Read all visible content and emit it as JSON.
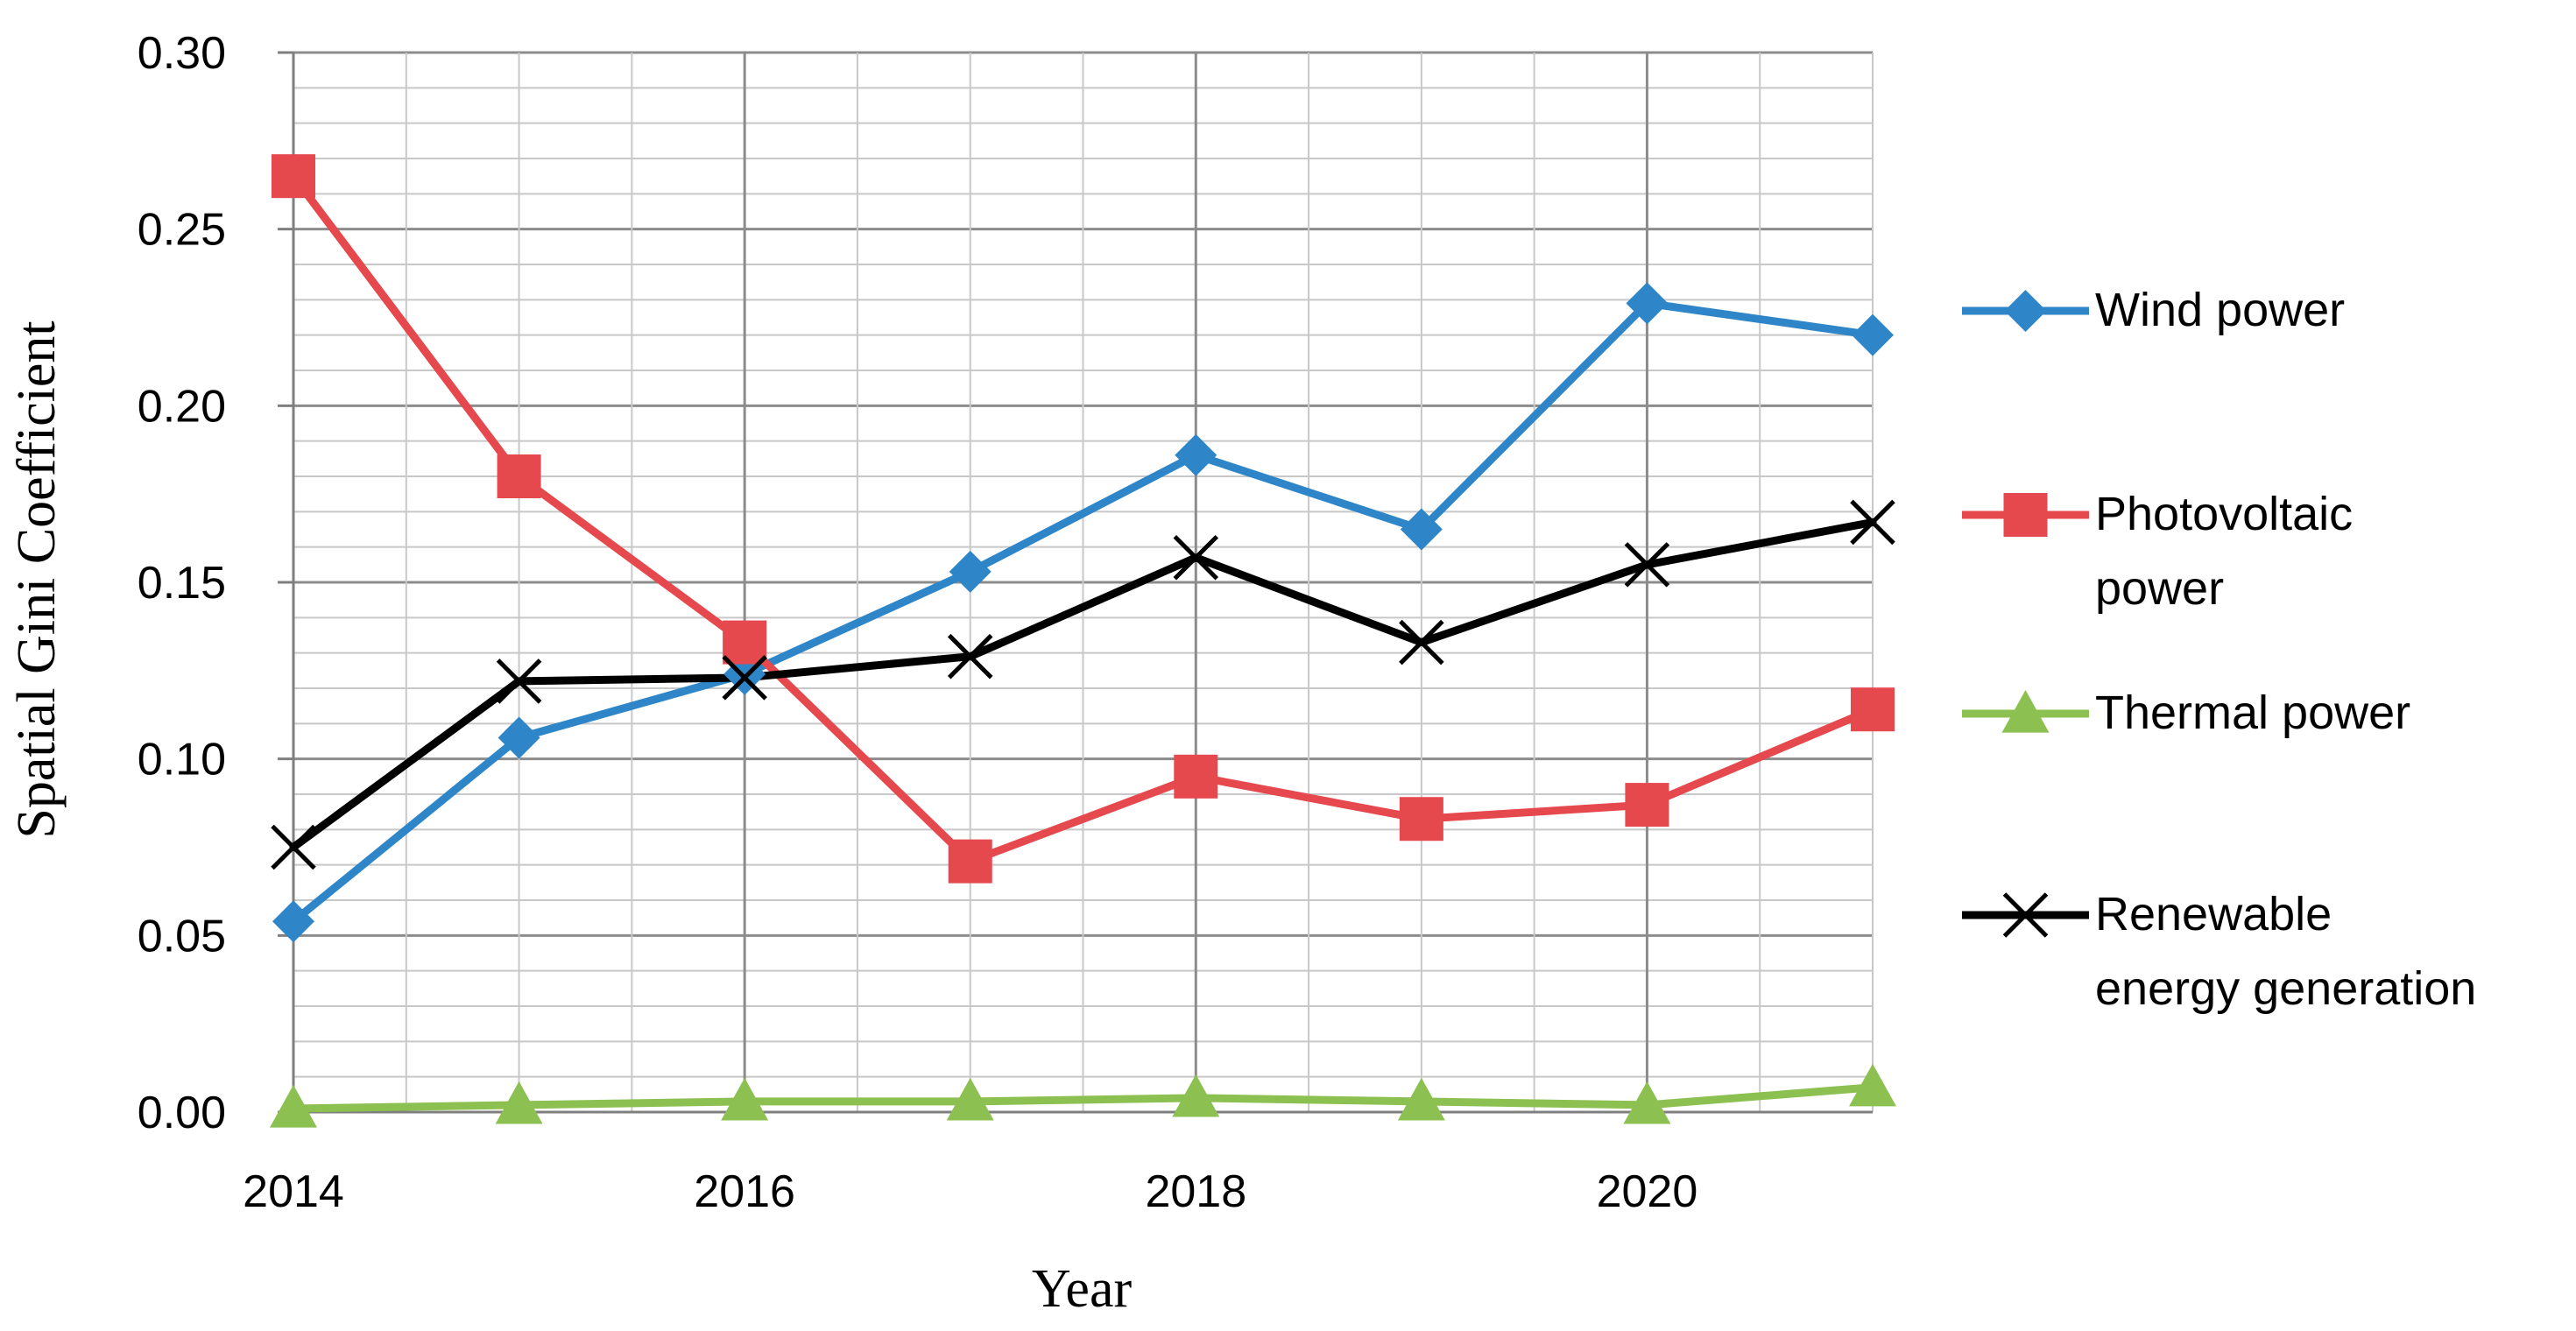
{
  "chart_data": {
    "type": "line",
    "xlabel": "Year",
    "ylabel": "Spatial Gini Coefficient",
    "x": [
      2014,
      2015,
      2016,
      2017,
      2018,
      2019,
      2020,
      2021
    ],
    "xticks": [
      "2014",
      "2016",
      "2018",
      "2020"
    ],
    "yticks": [
      "0.00",
      "0.05",
      "0.10",
      "0.15",
      "0.20",
      "0.25",
      "0.30"
    ],
    "ylim": [
      0,
      0.3
    ],
    "xlim": [
      2014,
      2021
    ],
    "grid": true,
    "legend_position": "right",
    "series": [
      {
        "key": "wind",
        "name": "Wind power",
        "legend_lines": [
          "Wind power"
        ],
        "color": "#2e86c8",
        "marker": "diamond",
        "values": [
          0.054,
          0.106,
          0.124,
          0.153,
          0.186,
          0.165,
          0.229,
          0.22
        ]
      },
      {
        "key": "pv",
        "name": "Photovoltaic power",
        "legend_lines": [
          "Photovoltaic",
          "power"
        ],
        "color": "#e5484d",
        "marker": "square",
        "values": [
          0.265,
          0.18,
          0.133,
          0.071,
          0.095,
          0.083,
          0.087,
          0.114
        ]
      },
      {
        "key": "thermal",
        "name": "Thermal power",
        "legend_lines": [
          "Thermal power"
        ],
        "color": "#8cc152",
        "marker": "triangle",
        "values": [
          0.001,
          0.002,
          0.003,
          0.003,
          0.004,
          0.003,
          0.002,
          0.007
        ]
      },
      {
        "key": "renewable",
        "name": "Renewable energy generation",
        "legend_lines": [
          "Renewable",
          "energy generation"
        ],
        "color": "#000000",
        "marker": "x",
        "values": [
          0.075,
          0.122,
          0.123,
          0.129,
          0.157,
          0.133,
          0.155,
          0.167
        ]
      }
    ]
  }
}
